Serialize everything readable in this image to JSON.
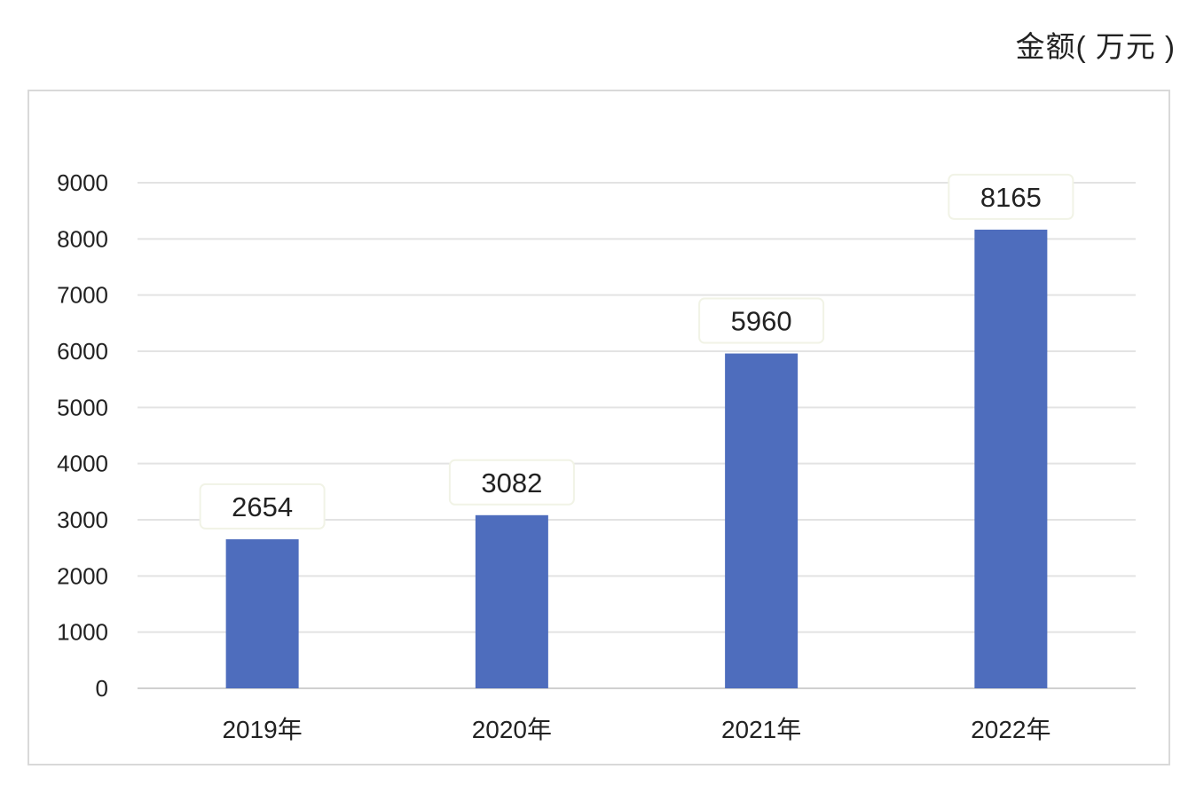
{
  "unit_label": "金额( 万元 )",
  "colors": {
    "bar": "#4e6dbd",
    "grid": "#e3e3e3",
    "axis": "#d0d0d0",
    "label_box_border": "#f1f3e6",
    "text": "#222222"
  },
  "chart_data": {
    "type": "bar",
    "title": "",
    "xlabel": "",
    "ylabel": "金额( 万元 )",
    "categories": [
      "2019年",
      "2020年",
      "2021年",
      "2022年"
    ],
    "values": [
      2654,
      3082,
      5960,
      8165
    ],
    "data_labels": [
      "2654",
      "3082",
      "5960",
      "8165"
    ],
    "ylim": [
      0,
      9000
    ],
    "yticks": [
      0,
      1000,
      2000,
      3000,
      4000,
      5000,
      6000,
      7000,
      8000,
      9000
    ],
    "ytick_labels": [
      "0",
      "1000",
      "2000",
      "3000",
      "4000",
      "5000",
      "6000",
      "7000",
      "8000",
      "9000"
    ],
    "grid": true,
    "legend": "none"
  }
}
